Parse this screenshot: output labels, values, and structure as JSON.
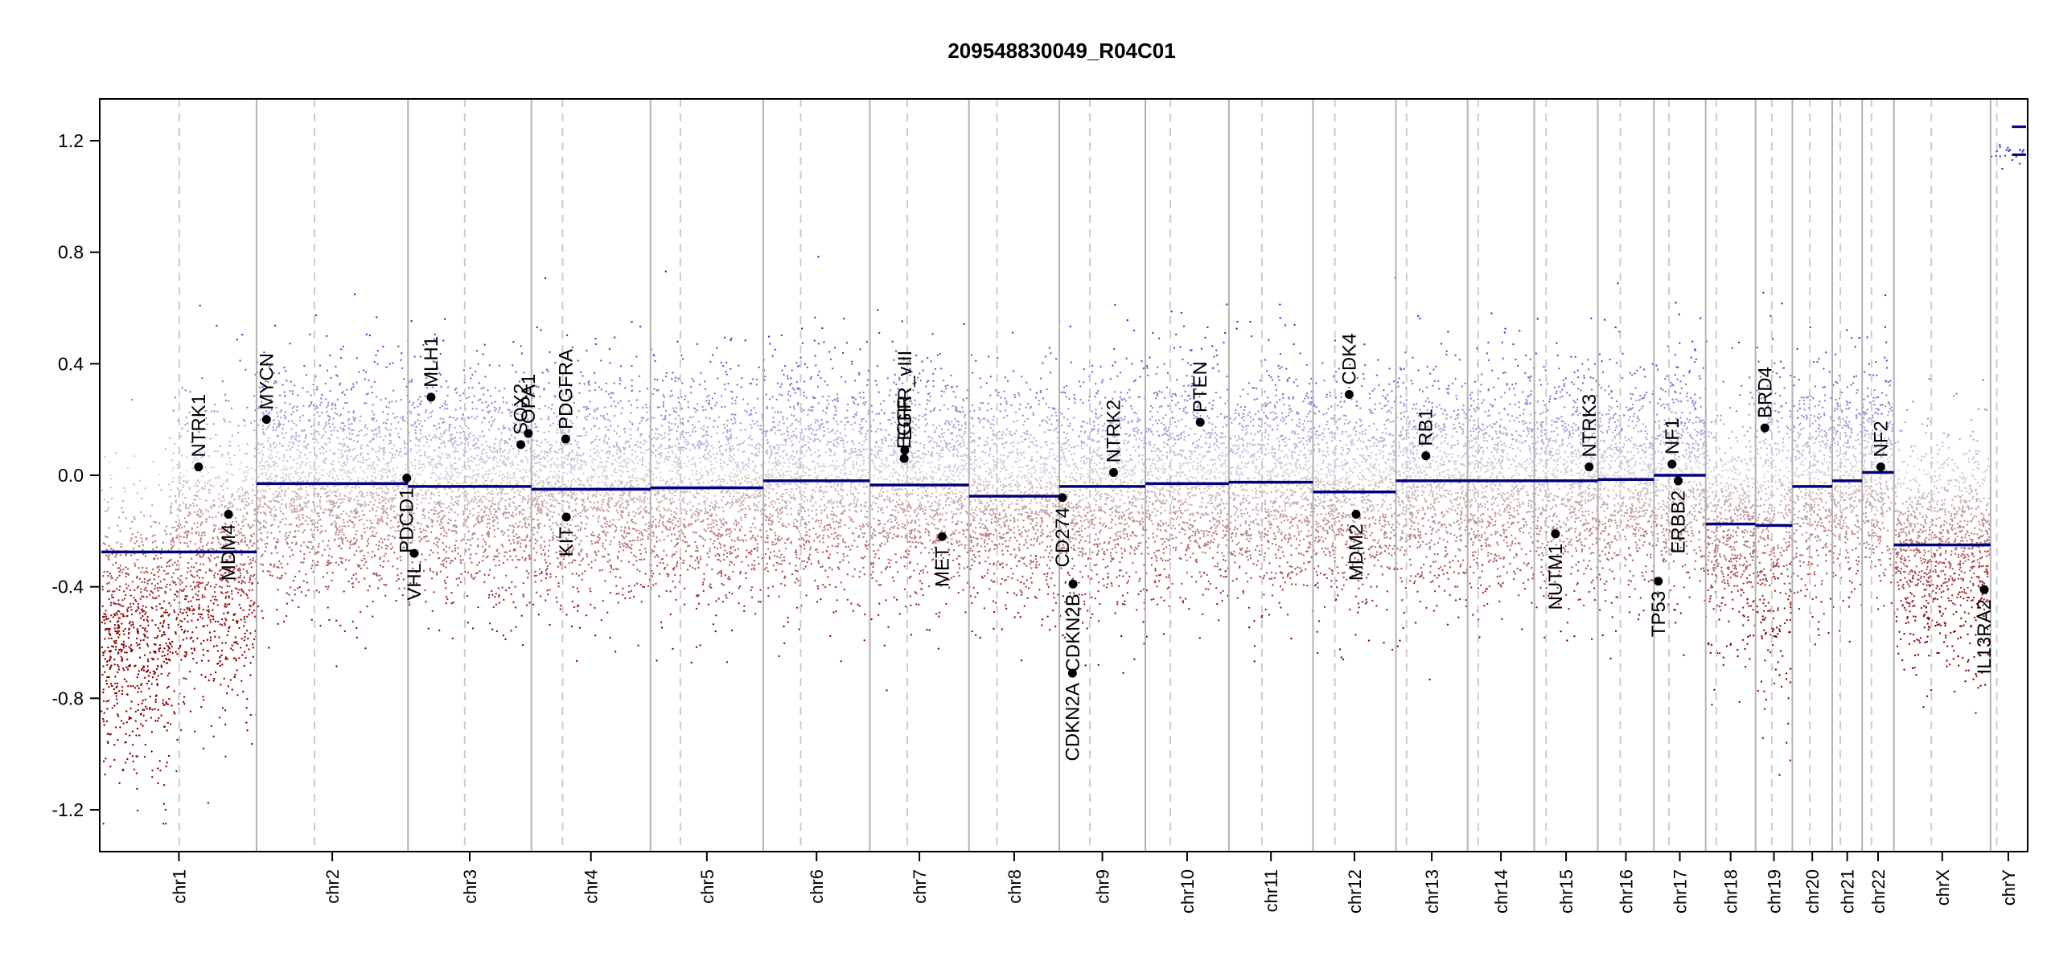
{
  "chart_data": {
    "type": "scatter",
    "title": "209548830049_R04C01",
    "xlabel": "",
    "ylabel": "",
    "ylim": [
      -1.35,
      1.35
    ],
    "yticks": [
      -1.2,
      -0.8,
      -0.4,
      0.0,
      0.4,
      0.8,
      1.2
    ],
    "ytick_labels": [
      "-1.2",
      "-0.8",
      "-0.4",
      "0.0",
      "0.4",
      "0.8",
      "1.2"
    ],
    "grid": false,
    "legend": "none",
    "colors": {
      "segment": "#00007f",
      "gain": "#3333cc",
      "loss": "#aa0000",
      "chrom_border": "#b3b3b3",
      "centromere": "#cccccc"
    },
    "chromosomes": [
      {
        "name": "chr1",
        "length": 249,
        "centromere": 125,
        "segments": [
          {
            "start": 0,
            "end": 249,
            "value": -0.275
          }
        ]
      },
      {
        "name": "chr2",
        "length": 243,
        "centromere": 93,
        "segments": [
          {
            "start": 0,
            "end": 243,
            "value": -0.03
          }
        ]
      },
      {
        "name": "chr3",
        "length": 198,
        "centromere": 91,
        "segments": [
          {
            "start": 0,
            "end": 198,
            "value": -0.04
          }
        ]
      },
      {
        "name": "chr4",
        "length": 191,
        "centromere": 50,
        "segments": [
          {
            "start": 0,
            "end": 191,
            "value": -0.05
          }
        ]
      },
      {
        "name": "chr5",
        "length": 181,
        "centromere": 48,
        "segments": [
          {
            "start": 0,
            "end": 181,
            "value": -0.045
          }
        ]
      },
      {
        "name": "chr6",
        "length": 171,
        "centromere": 60,
        "segments": [
          {
            "start": 0,
            "end": 171,
            "value": -0.02
          }
        ]
      },
      {
        "name": "chr7",
        "length": 159,
        "centromere": 60,
        "segments": [
          {
            "start": 0,
            "end": 159,
            "value": -0.035
          }
        ]
      },
      {
        "name": "chr8",
        "length": 145,
        "centromere": 45,
        "segments": [
          {
            "start": 0,
            "end": 145,
            "value": -0.075
          }
        ]
      },
      {
        "name": "chr9",
        "length": 138,
        "centromere": 49,
        "segments": [
          {
            "start": 0,
            "end": 138,
            "value": -0.04
          }
        ]
      },
      {
        "name": "chr10",
        "length": 134,
        "centromere": 40,
        "segments": [
          {
            "start": 0,
            "end": 134,
            "value": -0.03
          }
        ]
      },
      {
        "name": "chr11",
        "length": 135,
        "centromere": 53,
        "segments": [
          {
            "start": 0,
            "end": 135,
            "value": -0.025
          }
        ]
      },
      {
        "name": "chr12",
        "length": 133,
        "centromere": 35,
        "segments": [
          {
            "start": 0,
            "end": 133,
            "value": -0.06
          }
        ]
      },
      {
        "name": "chr13",
        "length": 115,
        "centromere": 17,
        "segments": [
          {
            "start": 0,
            "end": 115,
            "value": -0.02
          }
        ]
      },
      {
        "name": "chr14",
        "length": 107,
        "centromere": 17,
        "segments": [
          {
            "start": 0,
            "end": 107,
            "value": -0.02
          }
        ]
      },
      {
        "name": "chr15",
        "length": 102,
        "centromere": 19,
        "segments": [
          {
            "start": 0,
            "end": 102,
            "value": -0.02
          }
        ]
      },
      {
        "name": "chr16",
        "length": 90,
        "centromere": 36,
        "segments": [
          {
            "start": 0,
            "end": 90,
            "value": -0.015
          }
        ]
      },
      {
        "name": "chr17",
        "length": 83,
        "centromere": 24,
        "segments": [
          {
            "start": 0,
            "end": 83,
            "value": 0.0
          }
        ]
      },
      {
        "name": "chr18",
        "length": 80,
        "centromere": 17,
        "segments": [
          {
            "start": 0,
            "end": 80,
            "value": -0.175
          }
        ]
      },
      {
        "name": "chr19",
        "length": 59,
        "centromere": 26,
        "segments": [
          {
            "start": 0,
            "end": 59,
            "value": -0.18
          }
        ]
      },
      {
        "name": "chr20",
        "length": 64,
        "centromere": 28,
        "segments": [
          {
            "start": 0,
            "end": 64,
            "value": -0.04
          }
        ]
      },
      {
        "name": "chr21",
        "length": 48,
        "centromere": 13,
        "segments": [
          {
            "start": 0,
            "end": 48,
            "value": -0.02
          }
        ]
      },
      {
        "name": "chr22",
        "length": 51,
        "centromere": 15,
        "segments": [
          {
            "start": 0,
            "end": 51,
            "value": 0.01
          }
        ]
      },
      {
        "name": "chrX",
        "length": 155,
        "centromere": 60,
        "segments": [
          {
            "start": 0,
            "end": 155,
            "value": -0.25
          }
        ]
      },
      {
        "name": "chrY",
        "length": 57,
        "centromere": 10,
        "segments": [
          {
            "start": 0,
            "end": 57,
            "value": 1.15
          },
          {
            "start": 0,
            "end": 57,
            "value": 1.25
          }
        ]
      }
    ],
    "genes": [
      {
        "name": "NTRK1",
        "chr": "chr1",
        "pos": 156,
        "value": 0.03,
        "label": "above"
      },
      {
        "name": "MDM4",
        "chr": "chr1",
        "pos": 204,
        "value": -0.14,
        "label": "below"
      },
      {
        "name": "MYCN",
        "chr": "chr2",
        "pos": 16,
        "value": 0.2,
        "label": "above"
      },
      {
        "name": "VHL",
        "chr": "chr3",
        "pos": 10,
        "value": -0.28,
        "label": "below"
      },
      {
        "name": "PDCD1",
        "chr": "chr2",
        "pos": 241,
        "value": -0.01,
        "label": "below"
      },
      {
        "name": "MLH1",
        "chr": "chr3",
        "pos": 37,
        "value": 0.28,
        "label": "above"
      },
      {
        "name": "SOX2",
        "chr": "chr3",
        "pos": 181,
        "value": 0.11,
        "label": "above"
      },
      {
        "name": "OPA1",
        "chr": "chr3",
        "pos": 193,
        "value": 0.15,
        "label": "above"
      },
      {
        "name": "PDGFRA",
        "chr": "chr4",
        "pos": 55,
        "value": 0.13,
        "label": "above"
      },
      {
        "name": "KIT",
        "chr": "chr4",
        "pos": 56,
        "value": -0.15,
        "label": "below"
      },
      {
        "name": "EGFR",
        "chr": "chr7",
        "pos": 55,
        "value": 0.06,
        "label": "above"
      },
      {
        "name": "EGFR_vIII",
        "chr": "chr7",
        "pos": 56,
        "value": 0.09,
        "label": "above"
      },
      {
        "name": "MET",
        "chr": "chr7",
        "pos": 116,
        "value": -0.22,
        "label": "below"
      },
      {
        "name": "CD274",
        "chr": "chr9",
        "pos": 5,
        "value": -0.08,
        "label": "below"
      },
      {
        "name": "CDKN2A",
        "chr": "chr9",
        "pos": 21,
        "value": -0.71,
        "label": "below"
      },
      {
        "name": "CDKN2B",
        "chr": "chr9",
        "pos": 22,
        "value": -0.39,
        "label": "below"
      },
      {
        "name": "NTRK2",
        "chr": "chr9",
        "pos": 87,
        "value": 0.01,
        "label": "above"
      },
      {
        "name": "PTEN",
        "chr": "chr10",
        "pos": 88,
        "value": 0.19,
        "label": "above"
      },
      {
        "name": "CDK4",
        "chr": "chr12",
        "pos": 58,
        "value": 0.29,
        "label": "above"
      },
      {
        "name": "MDM2",
        "chr": "chr12",
        "pos": 69,
        "value": -0.14,
        "label": "below"
      },
      {
        "name": "RB1",
        "chr": "chr13",
        "pos": 48,
        "value": 0.07,
        "label": "above"
      },
      {
        "name": "NUTM1",
        "chr": "chr15",
        "pos": 34,
        "value": -0.21,
        "label": "below"
      },
      {
        "name": "NTRK3",
        "chr": "chr15",
        "pos": 88,
        "value": 0.03,
        "label": "above"
      },
      {
        "name": "TP53",
        "chr": "chr17",
        "pos": 7,
        "value": -0.38,
        "label": "below"
      },
      {
        "name": "NF1",
        "chr": "chr17",
        "pos": 29,
        "value": 0.04,
        "label": "above"
      },
      {
        "name": "ERBB2",
        "chr": "chr17",
        "pos": 39,
        "value": -0.02,
        "label": "below"
      },
      {
        "name": "BRD4",
        "chr": "chr19",
        "pos": 15,
        "value": 0.17,
        "label": "above"
      },
      {
        "name": "NF2",
        "chr": "chr22",
        "pos": 30,
        "value": 0.03,
        "label": "above"
      },
      {
        "name": "IL13RA2",
        "chr": "chrX",
        "pos": 145,
        "value": -0.41,
        "label": "below"
      }
    ]
  }
}
